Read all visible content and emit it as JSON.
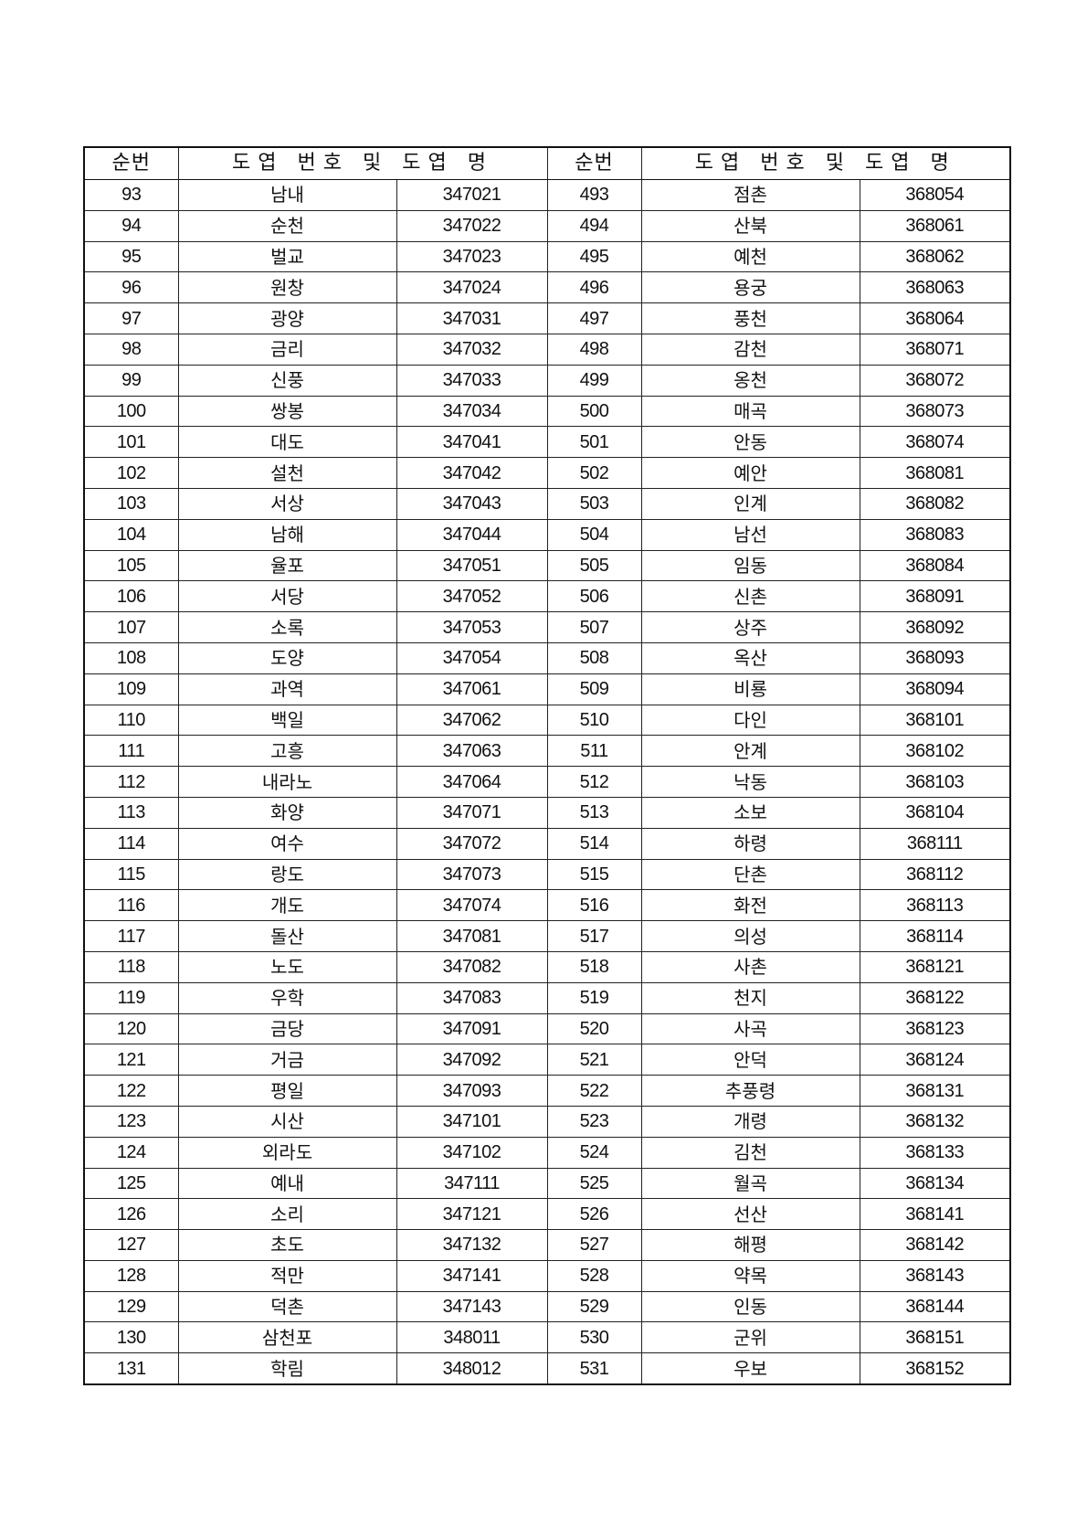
{
  "headers": {
    "seq": "순번",
    "map": "도엽 번호 및 도엽 명"
  },
  "left": [
    [
      "93",
      "남내",
      "347021"
    ],
    [
      "94",
      "순천",
      "347022"
    ],
    [
      "95",
      "벌교",
      "347023"
    ],
    [
      "96",
      "원창",
      "347024"
    ],
    [
      "97",
      "광양",
      "347031"
    ],
    [
      "98",
      "금리",
      "347032"
    ],
    [
      "99",
      "신풍",
      "347033"
    ],
    [
      "100",
      "쌍봉",
      "347034"
    ],
    [
      "101",
      "대도",
      "347041"
    ],
    [
      "102",
      "설천",
      "347042"
    ],
    [
      "103",
      "서상",
      "347043"
    ],
    [
      "104",
      "남해",
      "347044"
    ],
    [
      "105",
      "율포",
      "347051"
    ],
    [
      "106",
      "서당",
      "347052"
    ],
    [
      "107",
      "소록",
      "347053"
    ],
    [
      "108",
      "도양",
      "347054"
    ],
    [
      "109",
      "과역",
      "347061"
    ],
    [
      "110",
      "백일",
      "347062"
    ],
    [
      "111",
      "고흥",
      "347063"
    ],
    [
      "112",
      "내라노",
      "347064"
    ],
    [
      "113",
      "화양",
      "347071"
    ],
    [
      "114",
      "여수",
      "347072"
    ],
    [
      "115",
      "랑도",
      "347073"
    ],
    [
      "116",
      "개도",
      "347074"
    ],
    [
      "117",
      "돌산",
      "347081"
    ],
    [
      "118",
      "노도",
      "347082"
    ],
    [
      "119",
      "우학",
      "347083"
    ],
    [
      "120",
      "금당",
      "347091"
    ],
    [
      "121",
      "거금",
      "347092"
    ],
    [
      "122",
      "평일",
      "347093"
    ],
    [
      "123",
      "시산",
      "347101"
    ],
    [
      "124",
      "외라도",
      "347102"
    ],
    [
      "125",
      "예내",
      "347111"
    ],
    [
      "126",
      "소리",
      "347121"
    ],
    [
      "127",
      "초도",
      "347132"
    ],
    [
      "128",
      "적만",
      "347141"
    ],
    [
      "129",
      "덕촌",
      "347143"
    ],
    [
      "130",
      "삼천포",
      "348011"
    ],
    [
      "131",
      "학림",
      "348012"
    ]
  ],
  "right": [
    [
      "493",
      "점촌",
      "368054"
    ],
    [
      "494",
      "산북",
      "368061"
    ],
    [
      "495",
      "예천",
      "368062"
    ],
    [
      "496",
      "용궁",
      "368063"
    ],
    [
      "497",
      "풍천",
      "368064"
    ],
    [
      "498",
      "감천",
      "368071"
    ],
    [
      "499",
      "옹천",
      "368072"
    ],
    [
      "500",
      "매곡",
      "368073"
    ],
    [
      "501",
      "안동",
      "368074"
    ],
    [
      "502",
      "예안",
      "368081"
    ],
    [
      "503",
      "인계",
      "368082"
    ],
    [
      "504",
      "남선",
      "368083"
    ],
    [
      "505",
      "임동",
      "368084"
    ],
    [
      "506",
      "신촌",
      "368091"
    ],
    [
      "507",
      "상주",
      "368092"
    ],
    [
      "508",
      "옥산",
      "368093"
    ],
    [
      "509",
      "비룡",
      "368094"
    ],
    [
      "510",
      "다인",
      "368101"
    ],
    [
      "511",
      "안계",
      "368102"
    ],
    [
      "512",
      "낙동",
      "368103"
    ],
    [
      "513",
      "소보",
      "368104"
    ],
    [
      "514",
      "하령",
      "368111"
    ],
    [
      "515",
      "단촌",
      "368112"
    ],
    [
      "516",
      "화전",
      "368113"
    ],
    [
      "517",
      "의성",
      "368114"
    ],
    [
      "518",
      "사촌",
      "368121"
    ],
    [
      "519",
      "천지",
      "368122"
    ],
    [
      "520",
      "사곡",
      "368123"
    ],
    [
      "521",
      "안덕",
      "368124"
    ],
    [
      "522",
      "추풍령",
      "368131"
    ],
    [
      "523",
      "개령",
      "368132"
    ],
    [
      "524",
      "김천",
      "368133"
    ],
    [
      "525",
      "월곡",
      "368134"
    ],
    [
      "526",
      "선산",
      "368141"
    ],
    [
      "527",
      "해평",
      "368142"
    ],
    [
      "528",
      "약목",
      "368143"
    ],
    [
      "529",
      "인동",
      "368144"
    ],
    [
      "530",
      "군위",
      "368151"
    ],
    [
      "531",
      "우보",
      "368152"
    ]
  ]
}
